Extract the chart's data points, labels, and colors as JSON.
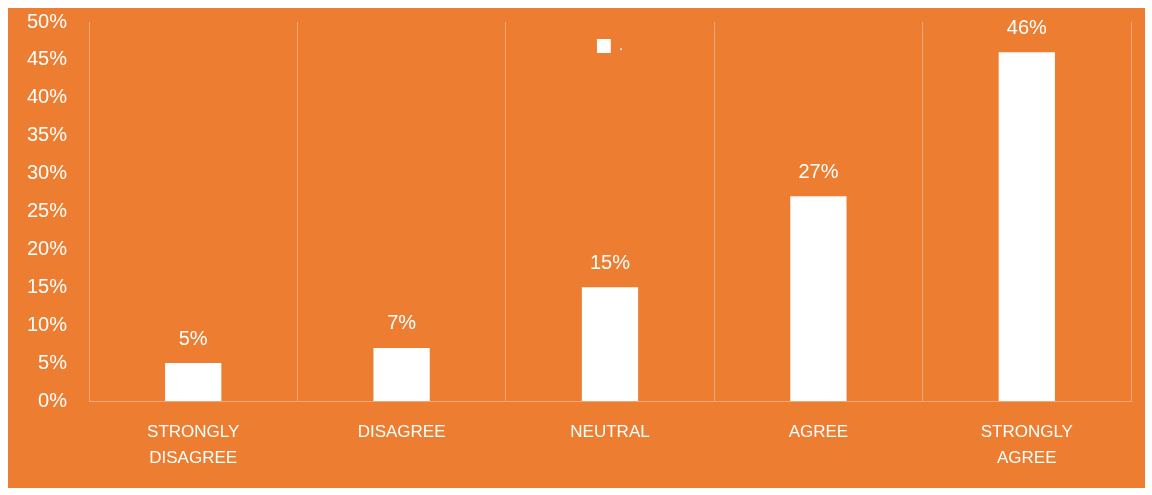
{
  "chart_data": {
    "type": "bar",
    "categories": [
      "STRONGLY DISAGREE",
      "DISAGREE",
      "NEUTRAL",
      "AGREE",
      "STRONGLY AGREE"
    ],
    "series": [
      {
        "name": ".",
        "color": "#ffffff",
        "values": [
          5,
          7,
          15,
          27,
          46
        ],
        "value_labels": [
          "5%",
          "7%",
          "15%",
          "27%",
          "46%"
        ]
      }
    ],
    "ylim": [
      0,
      50
    ],
    "yticks": [
      {
        "value": 0,
        "label": "0%"
      },
      {
        "value": 5,
        "label": "5%"
      },
      {
        "value": 10,
        "label": "10%"
      },
      {
        "value": 15,
        "label": "15%"
      },
      {
        "value": 20,
        "label": "20%"
      },
      {
        "value": 25,
        "label": "25%"
      },
      {
        "value": 30,
        "label": "30%"
      },
      {
        "value": 35,
        "label": "35%"
      },
      {
        "value": 40,
        "label": "40%"
      },
      {
        "value": 45,
        "label": "45%"
      },
      {
        "value": 50,
        "label": "50%"
      }
    ],
    "grid": "x",
    "legend": "top"
  }
}
